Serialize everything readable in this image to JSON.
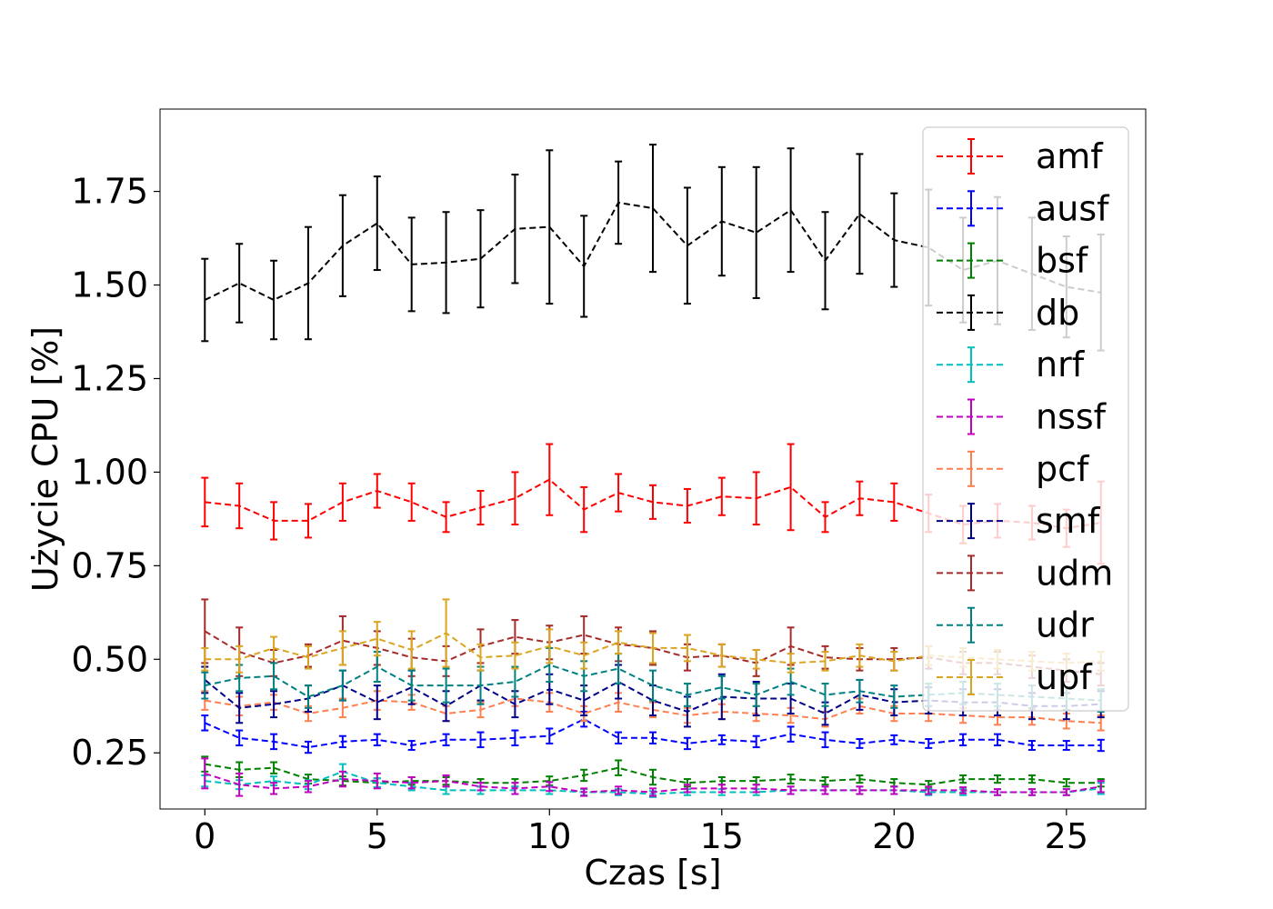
{
  "chart_data": {
    "type": "line",
    "title": "",
    "xlabel": "Czas [s]",
    "ylabel": "Użycie CPU [%]",
    "xlim": [
      -1.3,
      27.3
    ],
    "ylim": [
      0.1,
      1.97
    ],
    "xticks": [
      0,
      5,
      10,
      15,
      20,
      25
    ],
    "yticks": [
      0.25,
      0.5,
      0.75,
      1.0,
      1.25,
      1.5,
      1.75
    ],
    "xtick_labels": [
      "0",
      "5",
      "10",
      "15",
      "20",
      "25"
    ],
    "ytick_labels": [
      "0.25",
      "0.50",
      "0.75",
      "1.00",
      "1.25",
      "1.50",
      "1.75"
    ],
    "grid": false,
    "legend_position": "top-right",
    "x": [
      0,
      1,
      2,
      3,
      4,
      5,
      6,
      7,
      8,
      9,
      10,
      11,
      12,
      13,
      14,
      15,
      16,
      17,
      18,
      19,
      20,
      21,
      22,
      23,
      24,
      25,
      26
    ],
    "series": [
      {
        "name": "amf",
        "color": "#ff0000",
        "values": [
          0.92,
          0.91,
          0.87,
          0.87,
          0.92,
          0.95,
          0.92,
          0.88,
          0.905,
          0.93,
          0.98,
          0.9,
          0.945,
          0.92,
          0.91,
          0.935,
          0.93,
          0.96,
          0.88,
          0.93,
          0.92,
          0.89,
          0.86,
          0.87,
          0.865,
          0.85,
          0.865
        ],
        "errors": [
          0.065,
          0.06,
          0.05,
          0.045,
          0.05,
          0.045,
          0.05,
          0.04,
          0.045,
          0.07,
          0.095,
          0.06,
          0.05,
          0.045,
          0.045,
          0.05,
          0.07,
          0.115,
          0.04,
          0.045,
          0.05,
          0.05,
          0.05,
          0.045,
          0.045,
          0.05,
          0.11
        ]
      },
      {
        "name": "ausf",
        "color": "#0000ff",
        "values": [
          0.33,
          0.29,
          0.28,
          0.265,
          0.28,
          0.285,
          0.27,
          0.285,
          0.285,
          0.29,
          0.295,
          0.34,
          0.29,
          0.29,
          0.275,
          0.285,
          0.28,
          0.3,
          0.285,
          0.275,
          0.285,
          0.275,
          0.285,
          0.285,
          0.27,
          0.27,
          0.27
        ],
        "errors": [
          0.02,
          0.02,
          0.02,
          0.015,
          0.015,
          0.015,
          0.012,
          0.015,
          0.02,
          0.02,
          0.02,
          0.02,
          0.015,
          0.015,
          0.015,
          0.012,
          0.015,
          0.02,
          0.02,
          0.012,
          0.012,
          0.012,
          0.015,
          0.015,
          0.012,
          0.012,
          0.015
        ]
      },
      {
        "name": "bsf",
        "color": "#008000",
        "values": [
          0.22,
          0.205,
          0.21,
          0.18,
          0.175,
          0.17,
          0.175,
          0.175,
          0.17,
          0.17,
          0.175,
          0.19,
          0.21,
          0.185,
          0.17,
          0.175,
          0.175,
          0.18,
          0.175,
          0.18,
          0.17,
          0.165,
          0.18,
          0.18,
          0.18,
          0.17,
          0.17
        ],
        "errors": [
          0.02,
          0.02,
          0.015,
          0.012,
          0.012,
          0.012,
          0.01,
          0.01,
          0.01,
          0.01,
          0.012,
          0.015,
          0.02,
          0.02,
          0.01,
          0.01,
          0.01,
          0.012,
          0.01,
          0.01,
          0.01,
          0.01,
          0.01,
          0.01,
          0.01,
          0.01,
          0.01
        ]
      },
      {
        "name": "db",
        "color": "#000000",
        "values": [
          1.46,
          1.505,
          1.46,
          1.505,
          1.605,
          1.665,
          1.555,
          1.56,
          1.57,
          1.65,
          1.655,
          1.55,
          1.72,
          1.705,
          1.605,
          1.67,
          1.64,
          1.7,
          1.565,
          1.69,
          1.62,
          1.6,
          1.54,
          1.565,
          1.53,
          1.495,
          1.48
        ],
        "errors": [
          0.11,
          0.105,
          0.105,
          0.15,
          0.135,
          0.125,
          0.125,
          0.135,
          0.13,
          0.145,
          0.205,
          0.135,
          0.11,
          0.17,
          0.155,
          0.145,
          0.175,
          0.165,
          0.13,
          0.16,
          0.125,
          0.155,
          0.14,
          0.17,
          0.15,
          0.135,
          0.155
        ]
      },
      {
        "name": "nrf",
        "color": "#00bfbf",
        "values": [
          0.175,
          0.165,
          0.175,
          0.165,
          0.2,
          0.17,
          0.16,
          0.15,
          0.15,
          0.15,
          0.15,
          0.145,
          0.145,
          0.14,
          0.145,
          0.145,
          0.145,
          0.15,
          0.15,
          0.15,
          0.15,
          0.145,
          0.145,
          0.145,
          0.145,
          0.145,
          0.155
        ],
        "errors": [
          0.015,
          0.012,
          0.012,
          0.012,
          0.02,
          0.012,
          0.01,
          0.01,
          0.01,
          0.01,
          0.01,
          0.008,
          0.008,
          0.008,
          0.008,
          0.008,
          0.008,
          0.01,
          0.01,
          0.01,
          0.01,
          0.008,
          0.008,
          0.008,
          0.008,
          0.008,
          0.015
        ]
      },
      {
        "name": "nssf",
        "color": "#bf00bf",
        "values": [
          0.195,
          0.165,
          0.155,
          0.16,
          0.18,
          0.175,
          0.17,
          0.175,
          0.16,
          0.155,
          0.16,
          0.145,
          0.15,
          0.145,
          0.155,
          0.155,
          0.155,
          0.15,
          0.15,
          0.15,
          0.15,
          0.15,
          0.15,
          0.145,
          0.145,
          0.145,
          0.16
        ],
        "errors": [
          0.04,
          0.03,
          0.015,
          0.015,
          0.02,
          0.02,
          0.015,
          0.015,
          0.01,
          0.015,
          0.012,
          0.01,
          0.01,
          0.01,
          0.01,
          0.01,
          0.01,
          0.01,
          0.01,
          0.01,
          0.01,
          0.01,
          0.008,
          0.008,
          0.008,
          0.008,
          0.015
        ]
      },
      {
        "name": "pcf",
        "color": "#ff7f50",
        "values": [
          0.39,
          0.375,
          0.385,
          0.355,
          0.37,
          0.39,
          0.385,
          0.355,
          0.365,
          0.395,
          0.385,
          0.355,
          0.385,
          0.365,
          0.35,
          0.36,
          0.355,
          0.35,
          0.34,
          0.375,
          0.355,
          0.355,
          0.35,
          0.345,
          0.345,
          0.335,
          0.33
        ],
        "errors": [
          0.025,
          0.025,
          0.02,
          0.02,
          0.025,
          0.025,
          0.02,
          0.02,
          0.02,
          0.02,
          0.025,
          0.02,
          0.025,
          0.02,
          0.02,
          0.02,
          0.02,
          0.02,
          0.02,
          0.02,
          0.02,
          0.02,
          0.02,
          0.02,
          0.02,
          0.02,
          0.02
        ]
      },
      {
        "name": "smf",
        "color": "#00008b",
        "values": [
          0.445,
          0.37,
          0.38,
          0.395,
          0.43,
          0.385,
          0.425,
          0.375,
          0.43,
          0.38,
          0.42,
          0.39,
          0.44,
          0.39,
          0.36,
          0.4,
          0.395,
          0.395,
          0.355,
          0.405,
          0.385,
          0.39,
          0.385,
          0.385,
          0.375,
          0.375,
          0.38
        ],
        "errors": [
          0.035,
          0.04,
          0.035,
          0.035,
          0.04,
          0.045,
          0.045,
          0.04,
          0.04,
          0.035,
          0.04,
          0.04,
          0.045,
          0.04,
          0.04,
          0.06,
          0.045,
          0.04,
          0.03,
          0.04,
          0.035,
          0.035,
          0.035,
          0.035,
          0.035,
          0.035,
          0.035
        ]
      },
      {
        "name": "udm",
        "color": "#a52a2a",
        "values": [
          0.575,
          0.52,
          0.49,
          0.51,
          0.55,
          0.53,
          0.505,
          0.495,
          0.535,
          0.56,
          0.545,
          0.565,
          0.54,
          0.53,
          0.505,
          0.51,
          0.49,
          0.535,
          0.505,
          0.5,
          0.5,
          0.505,
          0.49,
          0.49,
          0.48,
          0.47,
          0.46
        ],
        "errors": [
          0.085,
          0.065,
          0.035,
          0.03,
          0.065,
          0.045,
          0.05,
          0.04,
          0.045,
          0.045,
          0.045,
          0.05,
          0.045,
          0.045,
          0.035,
          0.03,
          0.035,
          0.05,
          0.03,
          0.03,
          0.03,
          0.03,
          0.03,
          0.03,
          0.03,
          0.03,
          0.03
        ]
      },
      {
        "name": "udr",
        "color": "#008080",
        "values": [
          0.43,
          0.45,
          0.455,
          0.4,
          0.43,
          0.48,
          0.43,
          0.43,
          0.43,
          0.44,
          0.485,
          0.455,
          0.475,
          0.43,
          0.405,
          0.425,
          0.405,
          0.44,
          0.405,
          0.415,
          0.4,
          0.405,
          0.41,
          0.405,
          0.4,
          0.395,
          0.39
        ],
        "errors": [
          0.035,
          0.035,
          0.035,
          0.03,
          0.04,
          0.04,
          0.04,
          0.045,
          0.05,
          0.04,
          0.045,
          0.04,
          0.04,
          0.04,
          0.03,
          0.03,
          0.03,
          0.035,
          0.03,
          0.03,
          0.03,
          0.03,
          0.03,
          0.03,
          0.03,
          0.03,
          0.03
        ]
      },
      {
        "name": "upf",
        "color": "#daa520",
        "values": [
          0.5,
          0.5,
          0.53,
          0.505,
          0.53,
          0.555,
          0.525,
          0.57,
          0.505,
          0.51,
          0.535,
          0.51,
          0.545,
          0.53,
          0.53,
          0.51,
          0.5,
          0.49,
          0.495,
          0.51,
          0.495,
          0.51,
          0.505,
          0.5,
          0.495,
          0.49,
          0.495
        ],
        "errors": [
          0.03,
          0.035,
          0.03,
          0.03,
          0.045,
          0.045,
          0.05,
          0.09,
          0.035,
          0.035,
          0.045,
          0.035,
          0.03,
          0.04,
          0.035,
          0.03,
          0.025,
          0.025,
          0.025,
          0.03,
          0.025,
          0.025,
          0.025,
          0.025,
          0.025,
          0.025,
          0.025
        ]
      }
    ]
  }
}
